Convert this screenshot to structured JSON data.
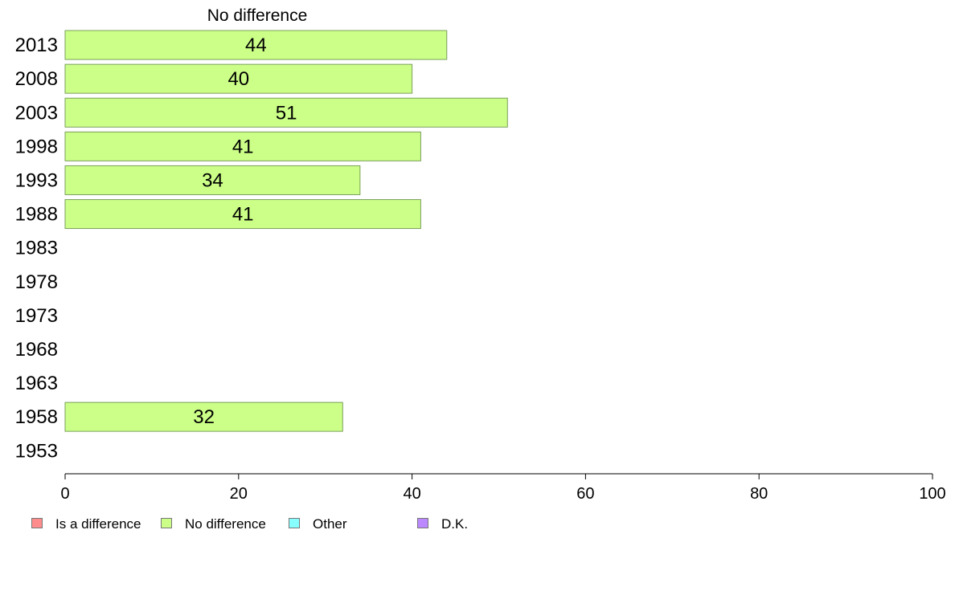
{
  "chart_data": {
    "type": "bar",
    "orientation": "horizontal",
    "panel_title": "No difference",
    "categories": [
      "2013",
      "2008",
      "2003",
      "1998",
      "1993",
      "1988",
      "1983",
      "1978",
      "1973",
      "1968",
      "1963",
      "1958",
      "1953"
    ],
    "series": [
      {
        "name": "No difference",
        "color": "#ccff88",
        "values": [
          44,
          40,
          51,
          41,
          34,
          41,
          null,
          null,
          null,
          null,
          null,
          32,
          null
        ]
      }
    ],
    "xlim": [
      0,
      100
    ],
    "xticks": [
      0,
      20,
      40,
      60,
      80,
      100
    ],
    "grid": false,
    "legend_position": "bottom-left",
    "legend": [
      {
        "name": "Is a difference",
        "color": "#ff8c8c"
      },
      {
        "name": "No difference",
        "color": "#ccff88"
      },
      {
        "name": "Other",
        "color": "#88ffff"
      },
      {
        "name": "D.K.",
        "color": "#bb88ff"
      }
    ]
  }
}
